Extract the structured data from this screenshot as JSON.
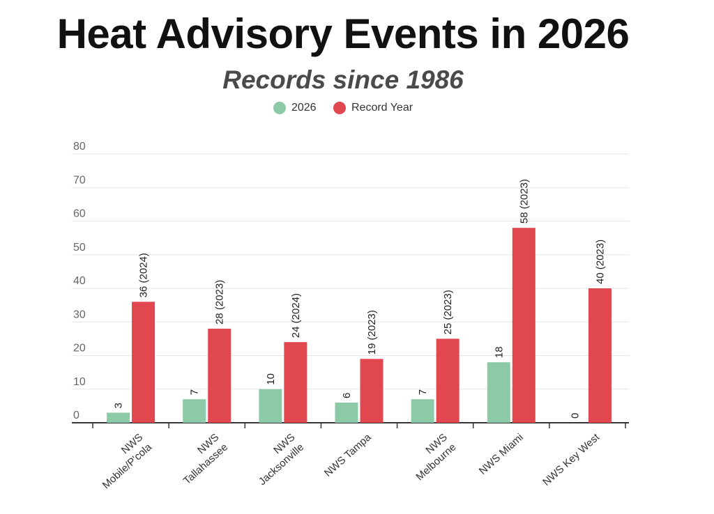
{
  "title": "Heat Advisory Events in 2026",
  "subtitle": "Records since 1986",
  "colors": {
    "series_2026": "#8cc9a6",
    "record_year": "#e0474f",
    "axis": "#333333",
    "grid": "#e6e6e6"
  },
  "chart_data": {
    "type": "bar",
    "title": "Heat Advisory Events in 2026",
    "subtitle": "Records since 1986",
    "categories": [
      [
        "NWS",
        "Mobile/P'cola"
      ],
      [
        "NWS",
        "Tallahassee"
      ],
      [
        "NWS",
        "Jacksonville"
      ],
      [
        "NWS Tampa"
      ],
      [
        "NWS",
        "Melbourne"
      ],
      [
        "NWS Miami"
      ],
      [
        "NWS Key West"
      ]
    ],
    "series": [
      {
        "name": "2026",
        "values": [
          3,
          7,
          10,
          6,
          7,
          18,
          0
        ],
        "labels": [
          "3",
          "7",
          "10",
          "6",
          "7",
          "18",
          "0"
        ]
      },
      {
        "name": "Record Year",
        "values": [
          36,
          28,
          24,
          19,
          25,
          58,
          40
        ],
        "labels": [
          "36 (2024)",
          "28 (2023)",
          "24 (2024)",
          "19 (2023)",
          "25 (2023)",
          "58 (2023)",
          "40 (2023)"
        ]
      }
    ],
    "yticks": [
      0,
      10,
      20,
      30,
      40,
      50,
      60,
      70,
      80
    ],
    "ylim": [
      0,
      80
    ],
    "grid": true,
    "legend": "top-center",
    "xlabel": "",
    "ylabel": ""
  }
}
